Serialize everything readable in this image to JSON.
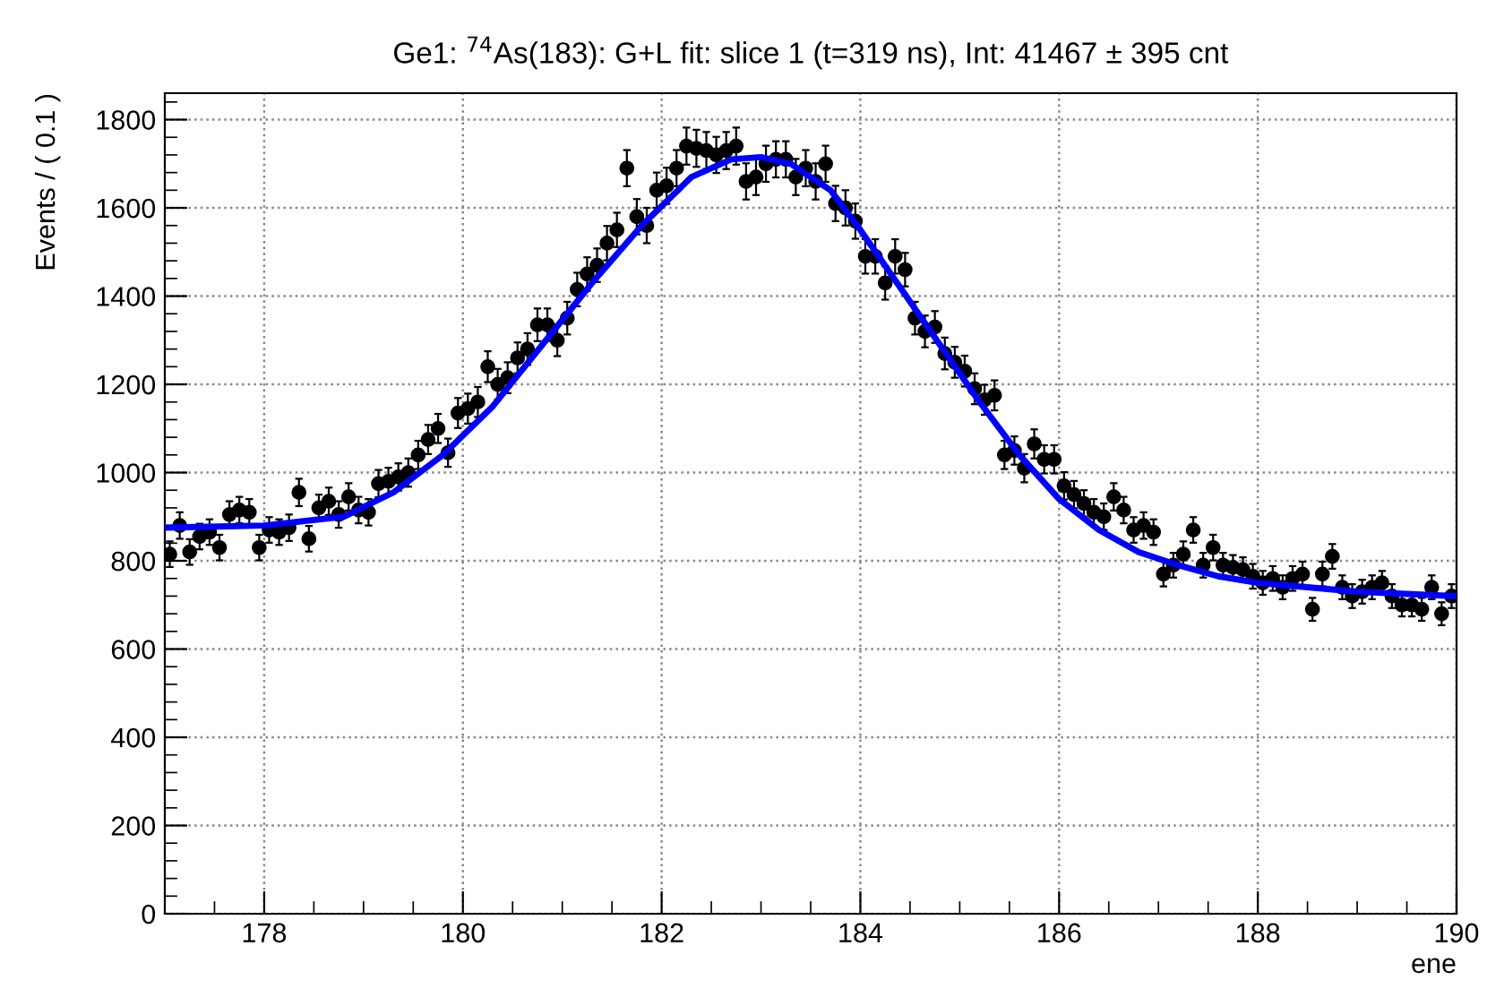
{
  "chart_data": {
    "type": "scatter",
    "title": "Ge1: $^{74}$As(183): G+L fit: slice 1 (t=319 ns), Int: 41467 ± 395 cnt",
    "xlabel": "ene",
    "ylabel": "Events / ( 0.1 )",
    "xlim": [
      177,
      190
    ],
    "ylim": [
      0,
      1860
    ],
    "xticks": [
      178,
      180,
      182,
      184,
      186,
      188,
      190
    ],
    "yticks": [
      0,
      200,
      400,
      600,
      800,
      1000,
      1200,
      1400,
      1600,
      1800
    ],
    "grid": true,
    "legend": false,
    "series": [
      {
        "color": "#000000",
        "marker": "circle",
        "x": [
          177.05,
          177.15,
          177.25,
          177.35,
          177.45,
          177.55,
          177.65,
          177.75,
          177.85,
          177.95,
          178.05,
          178.15,
          178.25,
          178.35,
          178.45,
          178.55,
          178.65,
          178.75,
          178.85,
          178.95,
          179.05,
          179.15,
          179.25,
          179.35,
          179.45,
          179.55,
          179.65,
          179.75,
          179.85,
          179.95,
          180.05,
          180.15,
          180.25,
          180.35,
          180.45,
          180.55,
          180.65,
          180.75,
          180.85,
          180.95,
          181.05,
          181.15,
          181.25,
          181.35,
          181.45,
          181.55,
          181.65,
          181.75,
          181.85,
          181.95,
          182.05,
          182.15,
          182.25,
          182.35,
          182.45,
          182.55,
          182.65,
          182.75,
          182.85,
          182.95,
          183.05,
          183.15,
          183.25,
          183.35,
          183.45,
          183.55,
          183.65,
          183.75,
          183.85,
          183.95,
          184.05,
          184.15,
          184.25,
          184.35,
          184.45,
          184.55,
          184.65,
          184.75,
          184.85,
          184.95,
          185.05,
          185.15,
          185.25,
          185.35,
          185.45,
          185.55,
          185.65,
          185.75,
          185.85,
          185.95,
          186.05,
          186.15,
          186.25,
          186.35,
          186.45,
          186.55,
          186.65,
          186.75,
          186.85,
          186.95,
          187.05,
          187.15,
          187.25,
          187.35,
          187.45,
          187.55,
          187.65,
          187.75,
          187.85,
          187.95,
          188.05,
          188.15,
          188.25,
          188.35,
          188.45,
          188.55,
          188.65,
          188.75,
          188.85,
          188.95,
          189.05,
          189.15,
          189.25,
          189.35,
          189.45,
          189.55,
          189.65,
          189.75,
          189.85,
          189.95
        ],
        "values": [
          815,
          880,
          820,
          855,
          865,
          830,
          905,
          915,
          910,
          830,
          870,
          865,
          875,
          955,
          850,
          920,
          935,
          905,
          945,
          915,
          910,
          975,
          980,
          990,
          1000,
          1040,
          1075,
          1100,
          1045,
          1135,
          1145,
          1160,
          1240,
          1200,
          1215,
          1260,
          1280,
          1335,
          1335,
          1300,
          1350,
          1415,
          1450,
          1470,
          1520,
          1550,
          1690,
          1580,
          1560,
          1640,
          1650,
          1690,
          1740,
          1735,
          1730,
          1720,
          1730,
          1740,
          1660,
          1670,
          1700,
          1710,
          1710,
          1670,
          1690,
          1660,
          1700,
          1610,
          1600,
          1570,
          1490,
          1490,
          1430,
          1490,
          1460,
          1350,
          1320,
          1330,
          1270,
          1250,
          1230,
          1190,
          1165,
          1175,
          1040,
          1050,
          1010,
          1065,
          1030,
          1030,
          970,
          950,
          930,
          910,
          900,
          945,
          915,
          870,
          880,
          865,
          770,
          790,
          815,
          870,
          790,
          830,
          790,
          785,
          780,
          765,
          750,
          760,
          740,
          760,
          770,
          690,
          770,
          810,
          740,
          720,
          730,
          740,
          750,
          720,
          700,
          700,
          690,
          740,
          680,
          720
        ],
        "errors": [
          29,
          30,
          29,
          29,
          29,
          29,
          30,
          30,
          30,
          29,
          29,
          29,
          30,
          31,
          29,
          30,
          31,
          30,
          31,
          30,
          30,
          31,
          31,
          31,
          32,
          32,
          33,
          33,
          32,
          34,
          34,
          34,
          35,
          35,
          35,
          35,
          36,
          37,
          37,
          36,
          37,
          38,
          38,
          38,
          39,
          39,
          41,
          40,
          40,
          40,
          41,
          41,
          42,
          42,
          42,
          41,
          42,
          42,
          41,
          41,
          41,
          41,
          41,
          41,
          41,
          41,
          41,
          40,
          40,
          40,
          39,
          39,
          38,
          39,
          38,
          37,
          36,
          36,
          36,
          35,
          35,
          35,
          34,
          34,
          32,
          32,
          32,
          33,
          32,
          32,
          31,
          31,
          30,
          30,
          30,
          31,
          30,
          29,
          30,
          29,
          28,
          28,
          29,
          29,
          28,
          29,
          28,
          28,
          28,
          28,
          27,
          28,
          27,
          28,
          28,
          26,
          28,
          28,
          27,
          27,
          27,
          27,
          27,
          27,
          26,
          26,
          26,
          27,
          26,
          27
        ]
      },
      {
        "type": "line",
        "color": "#0000ff",
        "x": [
          177,
          178,
          178.8,
          179.3,
          179.8,
          180.3,
          180.8,
          181.3,
          181.8,
          182.3,
          182.7,
          183.0,
          183.3,
          183.7,
          184.0,
          184.4,
          184.8,
          185.2,
          185.6,
          186.0,
          186.4,
          186.8,
          187.2,
          187.6,
          188.0,
          188.5,
          189.0,
          189.5,
          190
        ],
        "values": [
          875,
          880,
          900,
          955,
          1040,
          1150,
          1290,
          1430,
          1560,
          1670,
          1710,
          1715,
          1700,
          1640,
          1550,
          1420,
          1290,
          1160,
          1040,
          940,
          870,
          820,
          790,
          765,
          750,
          740,
          730,
          725,
          720
        ]
      }
    ]
  }
}
